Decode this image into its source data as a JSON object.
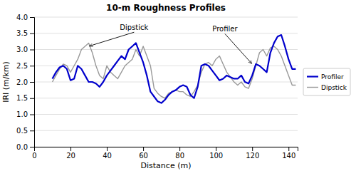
{
  "chart_data": {
    "type": "line",
    "title": "10-m Roughness Profiles",
    "xlabel": "Distance (m)",
    "ylabel": "IRI (m/km)",
    "x": [
      10,
      12,
      14,
      16,
      18,
      20,
      22,
      24,
      26,
      28,
      30,
      32,
      34,
      36,
      38,
      40,
      42,
      44,
      46,
      48,
      50,
      52,
      54,
      56,
      58,
      60,
      62,
      64,
      66,
      68,
      70,
      72,
      74,
      76,
      78,
      80,
      82,
      84,
      86,
      88,
      90,
      92,
      94,
      96,
      98,
      100,
      102,
      104,
      106,
      108,
      110,
      112,
      114,
      116,
      118,
      120,
      122,
      124,
      126,
      128,
      130,
      132,
      134,
      136,
      138,
      140,
      142,
      144
    ],
    "series": [
      {
        "name": "Dipstick",
        "color": "#999999",
        "values": [
          2.0,
          2.2,
          2.4,
          2.55,
          2.5,
          2.3,
          2.5,
          2.7,
          3.0,
          3.1,
          3.2,
          2.9,
          2.5,
          2.2,
          2.1,
          2.5,
          2.3,
          2.2,
          2.1,
          2.3,
          2.5,
          2.6,
          2.7,
          3.0,
          2.8,
          3.1,
          2.8,
          2.5,
          1.8,
          1.65,
          1.55,
          1.5,
          1.65,
          1.7,
          1.75,
          1.7,
          1.7,
          1.6,
          1.55,
          1.7,
          1.9,
          2.3,
          2.55,
          2.6,
          2.5,
          2.7,
          2.8,
          2.55,
          2.3,
          2.15,
          2.0,
          1.9,
          2.0,
          1.85,
          1.8,
          2.1,
          2.5,
          2.9,
          3.0,
          2.8,
          3.05,
          3.1,
          3.0,
          2.8,
          2.5,
          2.2,
          1.9,
          1.9
        ]
      },
      {
        "name": "Profiler",
        "color": "#0000CC",
        "values": [
          2.1,
          2.3,
          2.45,
          2.5,
          2.4,
          2.05,
          2.1,
          2.5,
          2.4,
          2.2,
          2.0,
          2.0,
          1.95,
          1.85,
          2.0,
          2.2,
          2.35,
          2.5,
          2.65,
          2.8,
          2.7,
          3.0,
          3.1,
          3.2,
          2.9,
          2.6,
          2.2,
          1.7,
          1.55,
          1.4,
          1.35,
          1.45,
          1.6,
          1.7,
          1.75,
          1.85,
          1.9,
          1.85,
          1.6,
          1.5,
          1.85,
          2.5,
          2.55,
          2.5,
          2.35,
          2.2,
          2.05,
          2.1,
          2.2,
          2.15,
          2.1,
          2.1,
          2.2,
          2.0,
          1.95,
          2.2,
          2.55,
          2.5,
          2.4,
          2.3,
          2.9,
          3.2,
          3.4,
          3.45,
          3.1,
          2.7,
          2.4,
          2.4
        ]
      }
    ],
    "xlim": [
      0,
      145
    ],
    "ylim": [
      0.0,
      4.0
    ],
    "xticks": [
      0,
      20,
      40,
      60,
      80,
      100,
      120,
      140
    ],
    "yticks": [
      {
        "value": 0.0,
        "label": "0.0"
      },
      0.5,
      {
        "value": 1.0,
        "label": "1.0"
      },
      1.5,
      {
        "value": 2.0,
        "label": "2.0"
      },
      2.5,
      {
        "value": 3.0,
        "label": "3.0"
      },
      3.5,
      {
        "value": 4.0,
        "label": "4.0"
      }
    ],
    "grid": true,
    "legend": "right",
    "annotations": [
      {
        "text": "Dipstick",
        "x": 30,
        "y": 3.1,
        "text_x": 55,
        "text_y": 3.6
      },
      {
        "text": "Profiler",
        "x": 120,
        "y": 2.55,
        "text_x": 105,
        "text_y": 3.55
      }
    ]
  }
}
